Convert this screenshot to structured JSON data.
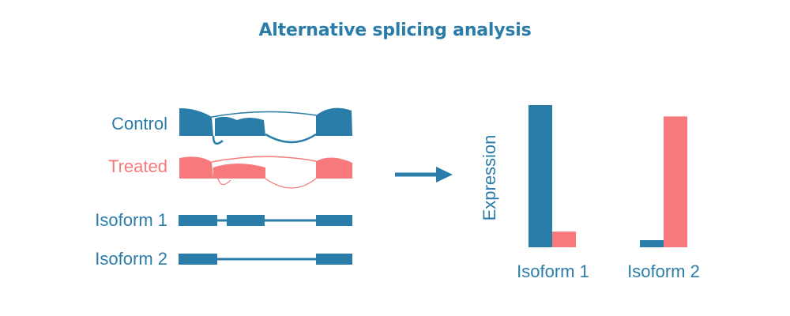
{
  "title": "Alternative splicing analysis",
  "tracks": {
    "control": "Control",
    "treated": "Treated",
    "isoform1": "Isoform 1",
    "isoform2": "Isoform 2"
  },
  "colors": {
    "control": "#2a7da8",
    "treated": "#f7797b"
  },
  "icons": {
    "arrow": "right-arrow-icon"
  },
  "chart_data": {
    "type": "bar",
    "categories": [
      "Isoform 1",
      "Isoform 2"
    ],
    "series": [
      {
        "values": [
          1.0,
          0.05
        ]
      },
      {
        "values": [
          0.11,
          0.92
        ]
      }
    ],
    "ylabel": "Expression",
    "ylim": [
      0,
      1
    ]
  }
}
